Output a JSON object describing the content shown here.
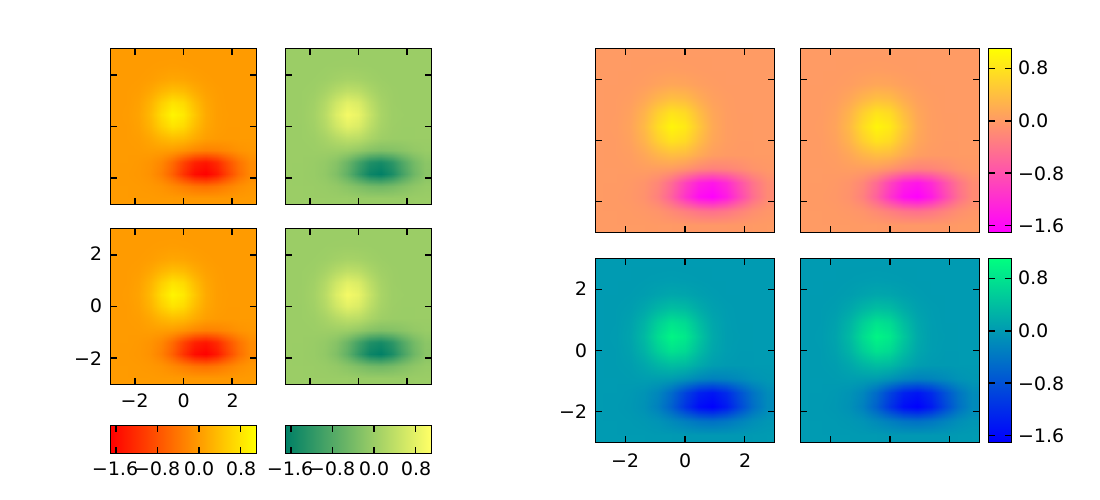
{
  "figure": {
    "background": "#ffffff"
  },
  "colormaps": {
    "autumn": [
      "#ff0000",
      "#ffff00"
    ],
    "summer": [
      "#008066",
      "#ffff66"
    ],
    "spring": [
      "#ff00ff",
      "#ffff00"
    ],
    "winter": [
      "#0000ff",
      "#00ff80"
    ]
  },
  "chart_data": {
    "type": "heatmap",
    "title": "",
    "x_range": [
      -3,
      3
    ],
    "y_range": [
      -3,
      3
    ],
    "x": [
      -3,
      -2.5,
      -2,
      -1.5,
      -1,
      -0.5,
      0,
      0.5,
      1,
      1.5,
      2,
      2.5,
      3
    ],
    "y": [
      3,
      2.5,
      2,
      1.5,
      1,
      0.5,
      0,
      -0.5,
      -1,
      -1.5,
      -2,
      -2.5,
      -3
    ],
    "z": [
      [
        0,
        0,
        0,
        0,
        0,
        0,
        0,
        0,
        0,
        0,
        0,
        0,
        0
      ],
      [
        0,
        0,
        0,
        0.01,
        0.02,
        0.03,
        0.02,
        0.01,
        0,
        0,
        0,
        0,
        0
      ],
      [
        0,
        0,
        0.01,
        0.04,
        0.09,
        0.13,
        0.11,
        0.06,
        0.02,
        0,
        0,
        0,
        0
      ],
      [
        0,
        0.01,
        0.04,
        0.13,
        0.29,
        0.4,
        0.35,
        0.19,
        0.07,
        0.02,
        0,
        0,
        0
      ],
      [
        0,
        0.01,
        0.08,
        0.27,
        0.57,
        0.79,
        0.69,
        0.38,
        0.13,
        0.03,
        0,
        0,
        0
      ],
      [
        0,
        0.02,
        0.1,
        0.33,
        0.72,
        0.99,
        0.86,
        0.48,
        0.17,
        0.04,
        0.01,
        0,
        0
      ],
      [
        0,
        0.01,
        0.08,
        0.27,
        0.57,
        0.79,
        0.69,
        0.38,
        0.13,
        0.03,
        0,
        0,
        0
      ],
      [
        0,
        0.01,
        0.04,
        0.13,
        0.29,
        0.39,
        0.34,
        0.18,
        0.05,
        0,
        -0.01,
        0,
        0
      ],
      [
        0,
        0,
        0.01,
        0.03,
        0.04,
        0.01,
        -0.09,
        -0.22,
        -0.28,
        -0.25,
        -0.17,
        -0.08,
        -0.03
      ],
      [
        0,
        0,
        -0.02,
        -0.07,
        -0.22,
        -0.53,
        -0.96,
        -1.34,
        -1.46,
        -1.23,
        -0.8,
        -0.41,
        -0.16
      ],
      [
        0,
        -0.01,
        -0.03,
        -0.1,
        -0.28,
        -0.63,
        -1.13,
        -1.56,
        -1.69,
        -1.41,
        -0.92,
        -0.47,
        -0.19
      ],
      [
        0,
        0,
        -0.01,
        -0.03,
        -0.08,
        -0.18,
        -0.31,
        -0.43,
        -0.47,
        -0.39,
        -0.26,
        -0.13,
        -0.05
      ],
      [
        0,
        0,
        0,
        0,
        -0.01,
        -0.01,
        -0.02,
        -0.03,
        -0.03,
        -0.03,
        -0.02,
        -0.01,
        0
      ]
    ],
    "vmin": -1.7,
    "vmax": 1.1,
    "panels": [
      {
        "id": "left-top-left",
        "colormap": "autumn"
      },
      {
        "id": "left-top-right",
        "colormap": "summer"
      },
      {
        "id": "left-bottom-left",
        "colormap": "autumn"
      },
      {
        "id": "left-bottom-right",
        "colormap": "summer"
      },
      {
        "id": "right-top-left",
        "colormap": "spring"
      },
      {
        "id": "right-top-right",
        "colormap": "spring"
      },
      {
        "id": "right-bottom-left",
        "colormap": "winter"
      },
      {
        "id": "right-bottom-right",
        "colormap": "winter"
      }
    ],
    "axes": {
      "x_tick_values": [
        -2,
        0,
        2
      ],
      "x_tick_labels": [
        "−2",
        "0",
        "2"
      ],
      "y_tick_values": [
        2,
        0,
        -2
      ],
      "y_tick_labels": [
        "2",
        "0",
        "−2"
      ]
    },
    "colorbars": {
      "horizontal": [
        {
          "colormap": "autumn",
          "tick_values": [
            -1.6,
            -0.8,
            0,
            0.8
          ],
          "tick_labels": [
            "−1.6",
            "−0.8",
            "0.0",
            "0.8"
          ]
        },
        {
          "colormap": "summer",
          "tick_values": [
            -1.6,
            -0.8,
            0,
            0.8
          ],
          "tick_labels": [
            "−1.6",
            "−0.8",
            "0.0",
            "0.8"
          ]
        }
      ],
      "vertical": [
        {
          "colormap": "spring",
          "tick_values": [
            0.8,
            0,
            -0.8,
            -1.6
          ],
          "tick_labels": [
            "0.8",
            "0.0",
            "−0.8",
            "−1.6"
          ]
        },
        {
          "colormap": "winter",
          "tick_values": [
            0.8,
            0,
            -0.8,
            -1.6
          ],
          "tick_labels": [
            "0.8",
            "0.0",
            "−0.8",
            "−1.6"
          ]
        }
      ]
    }
  }
}
